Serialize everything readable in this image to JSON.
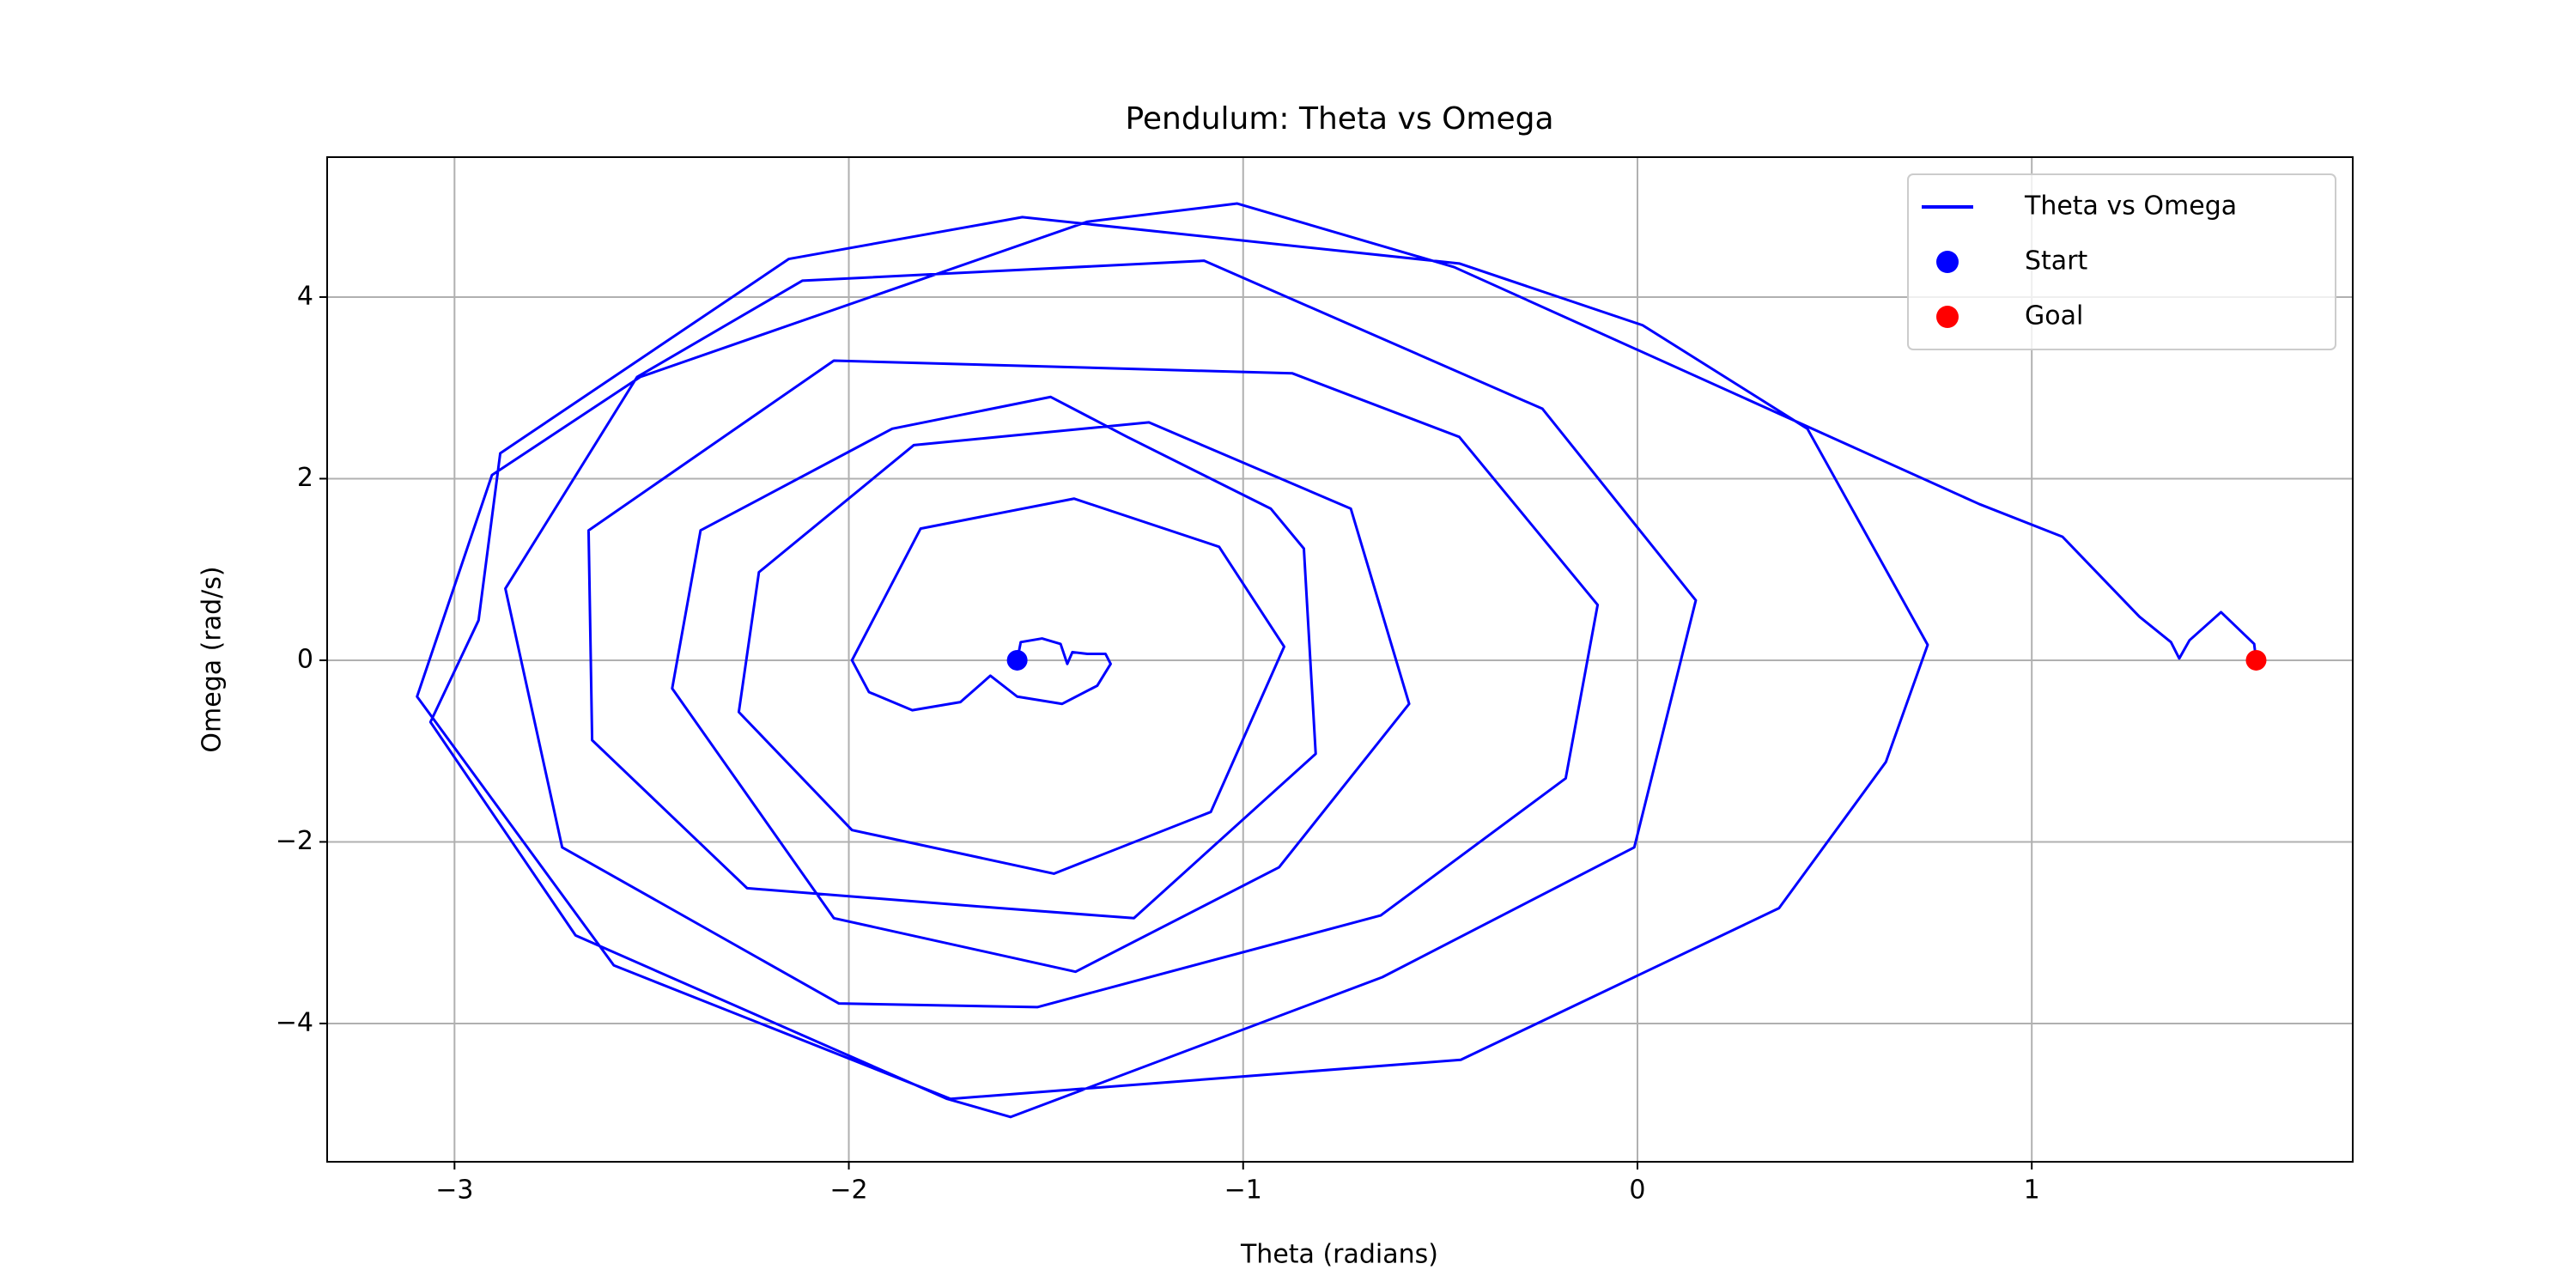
{
  "chart_data": {
    "type": "line",
    "title": "Pendulum: Theta vs Omega",
    "xlabel": "Theta (radians)",
    "ylabel": "Omega (rad/s)",
    "xlim": [
      -3.323,
      1.814
    ],
    "ylim": [
      -5.523,
      5.541
    ],
    "xticks": [
      {
        "value": -3,
        "label": "−3"
      },
      {
        "value": -2,
        "label": "−2"
      },
      {
        "value": -1,
        "label": "−1"
      },
      0,
      1
    ],
    "yticks": [
      {
        "value": -4,
        "label": "−4"
      },
      {
        "value": -2,
        "label": "−2"
      },
      0,
      2,
      4
    ],
    "grid": true,
    "legend": "upper right",
    "series": [
      {
        "name": "Theta vs Omega",
        "color": "#0000ff",
        "x": [
          -1.573,
          -1.564,
          -1.51,
          -1.463,
          -1.446,
          -1.433,
          -1.395,
          -1.349,
          -1.336,
          -1.37,
          -1.459,
          -1.573,
          -1.641,
          -1.717,
          -1.839,
          -1.949,
          -1.992,
          -1.818,
          -1.429,
          -1.061,
          -0.896,
          -1.082,
          -1.48,
          -1.992,
          -2.279,
          -2.228,
          -1.835,
          -1.239,
          -0.727,
          -0.579,
          -0.909,
          -1.425,
          -2.038,
          -2.448,
          -2.376,
          -1.89,
          -1.488,
          -1.294,
          -0.93,
          -0.846,
          -0.816,
          -1.277,
          -1.615,
          -2.258,
          -2.651,
          -2.66,
          -2.038,
          -0.875,
          -0.452,
          -0.101,
          -0.182,
          -0.651,
          -1.522,
          -2.025,
          -2.727,
          -2.871,
          -2.537,
          -2.118,
          -1.099,
          -0.241,
          0.148,
          -0.008,
          -0.647,
          -1.59,
          -1.751,
          -2.693,
          -3.061,
          -2.939,
          -2.884,
          -2.152,
          -1.56,
          -0.452,
          0.013,
          0.431,
          0.736,
          0.63,
          0.359,
          -0.448,
          -1.742,
          -2.596,
          -3.095,
          -2.905,
          -2.529,
          -1.395,
          -1.015,
          -0.465,
          0.867,
          1.078,
          1.273,
          1.353,
          1.374,
          1.4,
          1.48,
          1.564,
          1.569
        ],
        "y": [
          0,
          0.2,
          0.24,
          0.18,
          -0.04,
          0.09,
          0.07,
          0.07,
          -0.04,
          -0.28,
          -0.48,
          -0.4,
          -0.17,
          -0.46,
          -0.55,
          -0.35,
          0,
          1.45,
          1.78,
          1.25,
          0.15,
          -1.67,
          -2.35,
          -1.87,
          -0.57,
          0.97,
          2.37,
          2.62,
          1.67,
          -0.48,
          -2.28,
          -3.43,
          -2.84,
          -0.31,
          1.43,
          2.55,
          2.9,
          2.46,
          1.67,
          1.23,
          -1.03,
          -2.84,
          -2.73,
          -2.51,
          -0.88,
          1.43,
          3.3,
          3.16,
          2.46,
          0.61,
          -1.3,
          -2.81,
          -3.82,
          -3.78,
          -2.06,
          0.79,
          3.12,
          4.18,
          4.4,
          2.77,
          0.66,
          -2.06,
          -3.49,
          -5.03,
          -4.83,
          -3.03,
          -0.68,
          0.44,
          2.28,
          4.42,
          4.88,
          4.37,
          3.69,
          2.55,
          0.17,
          -1.12,
          -2.73,
          -4.4,
          -4.83,
          -3.36,
          -0.4,
          2.04,
          3.12,
          4.83,
          5.03,
          4.33,
          1.72,
          1.36,
          0.48,
          0.2,
          0.02,
          0.22,
          0.53,
          0.18,
          0
        ]
      }
    ],
    "markers": [
      {
        "name": "Start",
        "color": "#0000ff",
        "x": -1.573,
        "y": 0
      },
      {
        "name": "Goal",
        "color": "#ff0000",
        "x": 1.569,
        "y": 0
      }
    ]
  }
}
